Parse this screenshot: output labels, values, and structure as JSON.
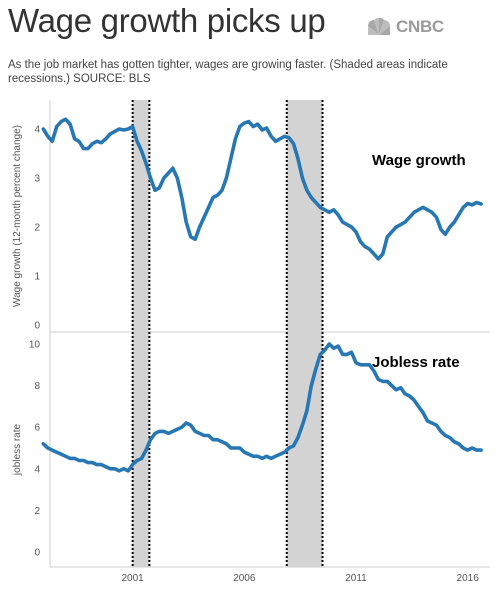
{
  "header": {
    "title": "Wage growth picks up",
    "subtitle": "As the job market has gotten tighter, wages are growing faster. (Shaded areas indicate recessions.) SOURCE: BLS",
    "brand": "CNBC",
    "brand_icon": "peacock-icon"
  },
  "colors": {
    "line": "#2777b4",
    "recession_shade": "#d3d3d3",
    "text": "#333333"
  },
  "chart_data": [
    {
      "type": "line",
      "panel_label": "Wage growth",
      "ylabel": "Wage growth (12-month percent change)",
      "ylim": [
        0,
        4.3
      ],
      "yticks": [
        "0",
        "1",
        "2",
        "3",
        "4"
      ],
      "xlim": [
        1997.3,
        2017.0
      ],
      "xticks": [
        "2001",
        "2006",
        "2011",
        "2016"
      ],
      "recessions": [
        [
          2001.0,
          2001.75
        ],
        [
          2007.9,
          2009.5
        ]
      ],
      "series": [
        {
          "x": [
            1997.0,
            1997.2,
            1997.4,
            1997.6,
            1997.8,
            1998.0,
            1998.2,
            1998.4,
            1998.6,
            1998.8,
            1999.0,
            1999.2,
            1999.4,
            1999.6,
            1999.8,
            2000.0,
            2000.2,
            2000.4,
            2000.6,
            2000.8,
            2001.0,
            2001.2,
            2001.4,
            2001.6,
            2001.8,
            2002.0,
            2002.2,
            2002.4,
            2002.6,
            2002.8,
            2003.0,
            2003.2,
            2003.4,
            2003.6,
            2003.8,
            2004.0,
            2004.2,
            2004.4,
            2004.6,
            2004.8,
            2005.0,
            2005.2,
            2005.4,
            2005.6,
            2005.8,
            2006.0,
            2006.2,
            2006.4,
            2006.6,
            2006.8,
            2007.0,
            2007.2,
            2007.4,
            2007.6,
            2007.8,
            2008.0,
            2008.2,
            2008.4,
            2008.6,
            2008.8,
            2009.0,
            2009.2,
            2009.4,
            2009.6,
            2009.8,
            2010.0,
            2010.2,
            2010.4,
            2010.6,
            2010.8,
            2011.0,
            2011.2,
            2011.4,
            2011.6,
            2011.8,
            2012.0,
            2012.2,
            2012.4,
            2012.6,
            2012.8,
            2013.0,
            2013.2,
            2013.4,
            2013.6,
            2013.8,
            2014.0,
            2014.2,
            2014.4,
            2014.6,
            2014.8,
            2015.0,
            2015.2,
            2015.4,
            2015.6,
            2015.8,
            2016.0,
            2016.2,
            2016.4,
            2016.6
          ],
          "y": [
            4.0,
            3.85,
            3.75,
            4.05,
            4.15,
            4.2,
            4.1,
            3.8,
            3.75,
            3.6,
            3.6,
            3.7,
            3.75,
            3.72,
            3.8,
            3.9,
            3.95,
            4.0,
            3.98,
            4.0,
            4.05,
            3.75,
            3.55,
            3.3,
            3.0,
            2.75,
            2.8,
            3.0,
            3.1,
            3.2,
            3.0,
            2.6,
            2.1,
            1.8,
            1.75,
            2.0,
            2.2,
            2.4,
            2.6,
            2.65,
            2.75,
            3.0,
            3.4,
            3.8,
            4.05,
            4.12,
            4.15,
            4.05,
            4.1,
            3.98,
            4.02,
            3.85,
            3.75,
            3.8,
            3.85,
            3.82,
            3.7,
            3.4,
            3.0,
            2.75,
            2.6,
            2.5,
            2.4,
            2.35,
            2.3,
            2.35,
            2.25,
            2.1,
            2.05,
            2.0,
            1.9,
            1.7,
            1.6,
            1.55,
            1.45,
            1.35,
            1.45,
            1.8,
            1.9,
            2.0,
            2.05,
            2.1,
            2.2,
            2.3,
            2.35,
            2.4,
            2.35,
            2.3,
            2.2,
            1.95,
            1.85,
            2.0,
            2.1,
            2.25,
            2.4,
            2.48,
            2.45,
            2.5,
            2.47
          ]
        }
      ]
    },
    {
      "type": "line",
      "panel_label": "Jobless rate",
      "ylabel": "jobless rate",
      "ylim": [
        0,
        10.3
      ],
      "yticks": [
        "0",
        "2",
        "4",
        "6",
        "8",
        "10"
      ],
      "xlim": [
        1997.3,
        2017.0
      ],
      "xticks": [
        "2001",
        "2006",
        "2011",
        "2016"
      ],
      "recessions": [
        [
          2001.0,
          2001.75
        ],
        [
          2007.9,
          2009.5
        ]
      ],
      "series": [
        {
          "x": [
            1997.0,
            1997.2,
            1997.4,
            1997.6,
            1997.8,
            1998.0,
            1998.2,
            1998.4,
            1998.6,
            1998.8,
            1999.0,
            1999.2,
            1999.4,
            1999.6,
            1999.8,
            2000.0,
            2000.2,
            2000.4,
            2000.6,
            2000.8,
            2001.0,
            2001.2,
            2001.4,
            2001.6,
            2001.8,
            2002.0,
            2002.2,
            2002.4,
            2002.6,
            2002.8,
            2003.0,
            2003.2,
            2003.4,
            2003.6,
            2003.8,
            2004.0,
            2004.2,
            2004.4,
            2004.6,
            2004.8,
            2005.0,
            2005.2,
            2005.4,
            2005.6,
            2005.8,
            2006.0,
            2006.2,
            2006.4,
            2006.6,
            2006.8,
            2007.0,
            2007.2,
            2007.4,
            2007.6,
            2007.8,
            2008.0,
            2008.2,
            2008.4,
            2008.6,
            2008.8,
            2009.0,
            2009.2,
            2009.4,
            2009.6,
            2009.8,
            2010.0,
            2010.2,
            2010.4,
            2010.6,
            2010.8,
            2011.0,
            2011.2,
            2011.4,
            2011.6,
            2011.8,
            2012.0,
            2012.2,
            2012.4,
            2012.6,
            2012.8,
            2013.0,
            2013.2,
            2013.4,
            2013.6,
            2013.8,
            2014.0,
            2014.2,
            2014.4,
            2014.6,
            2014.8,
            2015.0,
            2015.2,
            2015.4,
            2015.6,
            2015.8,
            2016.0,
            2016.2,
            2016.4,
            2016.6
          ],
          "y": [
            5.2,
            5.0,
            4.9,
            4.8,
            4.7,
            4.6,
            4.5,
            4.5,
            4.4,
            4.4,
            4.3,
            4.3,
            4.2,
            4.2,
            4.1,
            4.0,
            4.0,
            3.9,
            4.0,
            3.9,
            4.2,
            4.4,
            4.5,
            4.9,
            5.4,
            5.7,
            5.8,
            5.8,
            5.7,
            5.8,
            5.9,
            6.0,
            6.2,
            6.1,
            5.8,
            5.7,
            5.6,
            5.6,
            5.4,
            5.4,
            5.3,
            5.2,
            5.0,
            5.0,
            5.0,
            4.8,
            4.7,
            4.6,
            4.6,
            4.5,
            4.6,
            4.5,
            4.6,
            4.7,
            4.8,
            5.0,
            5.1,
            5.5,
            6.1,
            6.8,
            8.0,
            8.8,
            9.5,
            9.7,
            10.0,
            9.8,
            9.9,
            9.5,
            9.5,
            9.6,
            9.1,
            9.0,
            9.0,
            9.0,
            8.7,
            8.3,
            8.2,
            8.2,
            8.0,
            7.8,
            7.9,
            7.6,
            7.5,
            7.3,
            7.0,
            6.7,
            6.3,
            6.2,
            6.1,
            5.8,
            5.6,
            5.5,
            5.3,
            5.2,
            5.0,
            4.9,
            5.0,
            4.9,
            4.9
          ]
        }
      ]
    }
  ]
}
